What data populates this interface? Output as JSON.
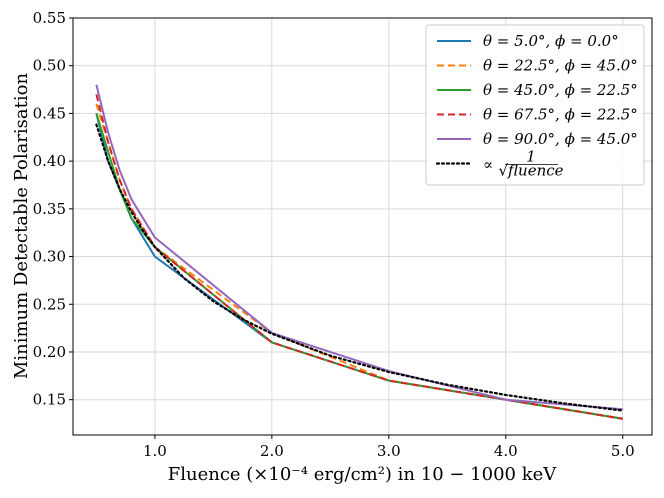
{
  "chart_data": {
    "type": "line",
    "title": "",
    "xlabel": "Fluence (×10⁻⁴ erg/cm²) in 10 − 1000 keV",
    "ylabel": "Minimum Detectable Polarisation",
    "xlim": [
      0.3,
      5.25
    ],
    "ylim": [
      0.113,
      0.55
    ],
    "xticks": [
      1.0,
      2.0,
      3.0,
      4.0,
      5.0
    ],
    "xtick_labels": [
      "1.0",
      "2.0",
      "3.0",
      "4.0",
      "5.0"
    ],
    "yticks": [
      0.15,
      0.2,
      0.25,
      0.3,
      0.35,
      0.4,
      0.45,
      0.5,
      0.55
    ],
    "ytick_labels": [
      "0.15",
      "0.20",
      "0.25",
      "0.30",
      "0.35",
      "0.40",
      "0.45",
      "0.50",
      "0.55"
    ],
    "grid": true,
    "legend_position": "top-right",
    "series": [
      {
        "name": "θ = 5.0°, ϕ = 0.0°",
        "color": "#1f77b4",
        "style": "solid",
        "x": [
          0.5,
          0.6,
          0.7,
          0.8,
          1.0,
          2.0,
          3.0,
          4.0,
          5.0
        ],
        "values": [
          0.45,
          0.4,
          0.37,
          0.34,
          0.3,
          0.21,
          0.17,
          0.15,
          0.13
        ]
      },
      {
        "name": "θ = 22.5°, ϕ = 45.0°",
        "color": "#ff7f0e",
        "style": "dashed",
        "x": [
          0.5,
          0.6,
          0.7,
          0.8,
          1.0,
          2.0,
          3.0,
          4.0,
          5.0
        ],
        "values": [
          0.46,
          0.42,
          0.38,
          0.35,
          0.31,
          0.22,
          0.17,
          0.15,
          0.13
        ]
      },
      {
        "name": "θ = 45.0°, ϕ = 22.5°",
        "color": "#2ca02c",
        "style": "solid",
        "x": [
          0.5,
          0.6,
          0.7,
          0.8,
          1.0,
          2.0,
          3.0,
          4.0,
          5.0
        ],
        "values": [
          0.45,
          0.41,
          0.37,
          0.34,
          0.31,
          0.21,
          0.17,
          0.15,
          0.13
        ]
      },
      {
        "name": "θ = 67.5°, ϕ = 22.5°",
        "color": "#d62728",
        "style": "dashed",
        "x": [
          0.5,
          0.6,
          0.7,
          0.8,
          1.0,
          2.0,
          3.0,
          4.0,
          5.0
        ],
        "values": [
          0.47,
          0.42,
          0.38,
          0.35,
          0.31,
          0.21,
          0.17,
          0.15,
          0.13
        ]
      },
      {
        "name": "θ = 90.0°, ϕ = 45.0°",
        "color": "#9467bd",
        "style": "solid",
        "x": [
          0.5,
          0.6,
          0.7,
          0.8,
          1.0,
          2.0,
          3.0,
          4.0,
          5.0
        ],
        "values": [
          0.48,
          0.43,
          0.39,
          0.36,
          0.32,
          0.22,
          0.18,
          0.15,
          0.14
        ]
      },
      {
        "name": "∝ 1/√(fluence)",
        "color": "#000000",
        "style": "dotted",
        "x": [
          0.5,
          0.6,
          0.7,
          0.8,
          0.9,
          1.0,
          1.25,
          1.5,
          1.75,
          2.0,
          2.5,
          3.0,
          3.5,
          4.0,
          4.5,
          5.0
        ],
        "values": [
          0.4384,
          0.4002,
          0.3705,
          0.3466,
          0.3268,
          0.31,
          0.2773,
          0.2531,
          0.2343,
          0.2192,
          0.1961,
          0.179,
          0.1657,
          0.155,
          0.1461,
          0.1386
        ]
      }
    ],
    "legend_entries": [
      {
        "pre": "θ = 5.0°, ϕ = 0.0°"
      },
      {
        "pre": "θ = 22.5°, ϕ = 45.0°"
      },
      {
        "pre": "θ = 45.0°, ϕ = 22.5°"
      },
      {
        "pre": "θ = 67.5°, ϕ = 22.5°"
      },
      {
        "pre": "θ = 90.0°, ϕ = 45.0°"
      },
      {
        "pre": "∝",
        "frac_num": "1",
        "frac_den": "√fluence"
      }
    ]
  }
}
